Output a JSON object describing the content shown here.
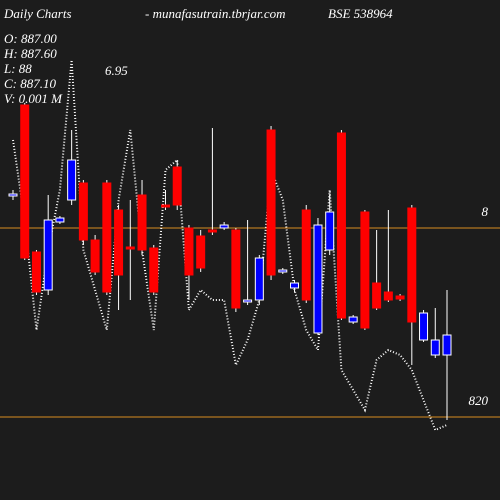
{
  "chart_data": {
    "type": "candlestick",
    "title": "Daily Charts",
    "site": "- munafasutrain.tbrjar.com",
    "symbol": "BSE 538964",
    "info": [
      "O: 887.00",
      "H: 887.60",
      "L: 88",
      "C: 887.10",
      "V: 0.001 M"
    ],
    "info_overlay": "6.95",
    "ylim": [
      786.8,
      986.8
    ],
    "yticks": [
      {
        "value": 895.6,
        "label": "8"
      },
      820
    ],
    "tick_color": "#d98c1f",
    "up_color": "#0000ff",
    "down_color": "#ff0000",
    "open": [
      908.4,
      944.8,
      886.0,
      870.8,
      898.0,
      906.8,
      913.6,
      890.8,
      913.6,
      902.8,
      888.0,
      908.8,
      887.6,
      904.8,
      920.0,
      895.6,
      892.4,
      894.8,
      895.6,
      894.8,
      866.0,
      866.8,
      934.8,
      878.0,
      871.6,
      902.8,
      853.6,
      886.8,
      933.6,
      858.0,
      902.0,
      873.6,
      870.0,
      868.4,
      903.6,
      850.8,
      844.8,
      844.8
    ],
    "high": [
      910.8,
      945.6,
      886.8,
      908.8,
      900.4,
      934.8,
      914.8,
      892.8,
      914.8,
      904.8,
      906.8,
      914.8,
      888.8,
      910.8,
      922.8,
      896.8,
      894.8,
      935.6,
      898.0,
      895.6,
      898.8,
      884.8,
      936.4,
      879.6,
      874.8,
      904.8,
      899.6,
      908.8,
      934.8,
      860.8,
      902.8,
      894.8,
      902.8,
      869.2,
      904.8,
      862.8,
      863.6,
      870.8
    ],
    "low": [
      906.8,
      882.8,
      868.8,
      868.8,
      897.2,
      904.8,
      888.8,
      876.8,
      868.8,
      862.8,
      866.8,
      884.8,
      868.8,
      902.8,
      902.8,
      866.8,
      878.0,
      892.8,
      894.8,
      862.0,
      864.8,
      864.8,
      874.8,
      877.2,
      870.0,
      865.6,
      852.8,
      884.8,
      858.8,
      857.2,
      854.8,
      862.8,
      866.0,
      866.4,
      840.8,
      850.0,
      843.6,
      818.8
    ],
    "close": [
      909.2,
      883.6,
      870.0,
      898.8,
      899.6,
      922.8,
      890.8,
      878.0,
      870.0,
      876.8,
      887.2,
      886.8,
      870.0,
      904.0,
      904.8,
      876.8,
      879.6,
      894.0,
      896.8,
      863.6,
      866.8,
      883.6,
      876.8,
      878.8,
      873.6,
      866.8,
      896.8,
      902.0,
      859.6,
      860.0,
      855.6,
      863.6,
      866.8,
      867.2,
      858.0,
      861.6,
      850.8,
      852.8
    ],
    "overlay": {
      "color": "#ffffff",
      "values": [
        930.8,
        898.8,
        854.8,
        886.8,
        910.8,
        962.8,
        886.8,
        870.8,
        854.8,
        906.8,
        934.8,
        886.8,
        854.8,
        918.8,
        922.8,
        862.8,
        870.8,
        866.8,
        866.8,
        840.8,
        850.8,
        866.8,
        918.8,
        906.8,
        870.8,
        854.8,
        846.8,
        910.8,
        838.8,
        830.8,
        822.8,
        842.8,
        846.8,
        844.8,
        838.8,
        826.8,
        814.8,
        816.8
      ]
    }
  }
}
